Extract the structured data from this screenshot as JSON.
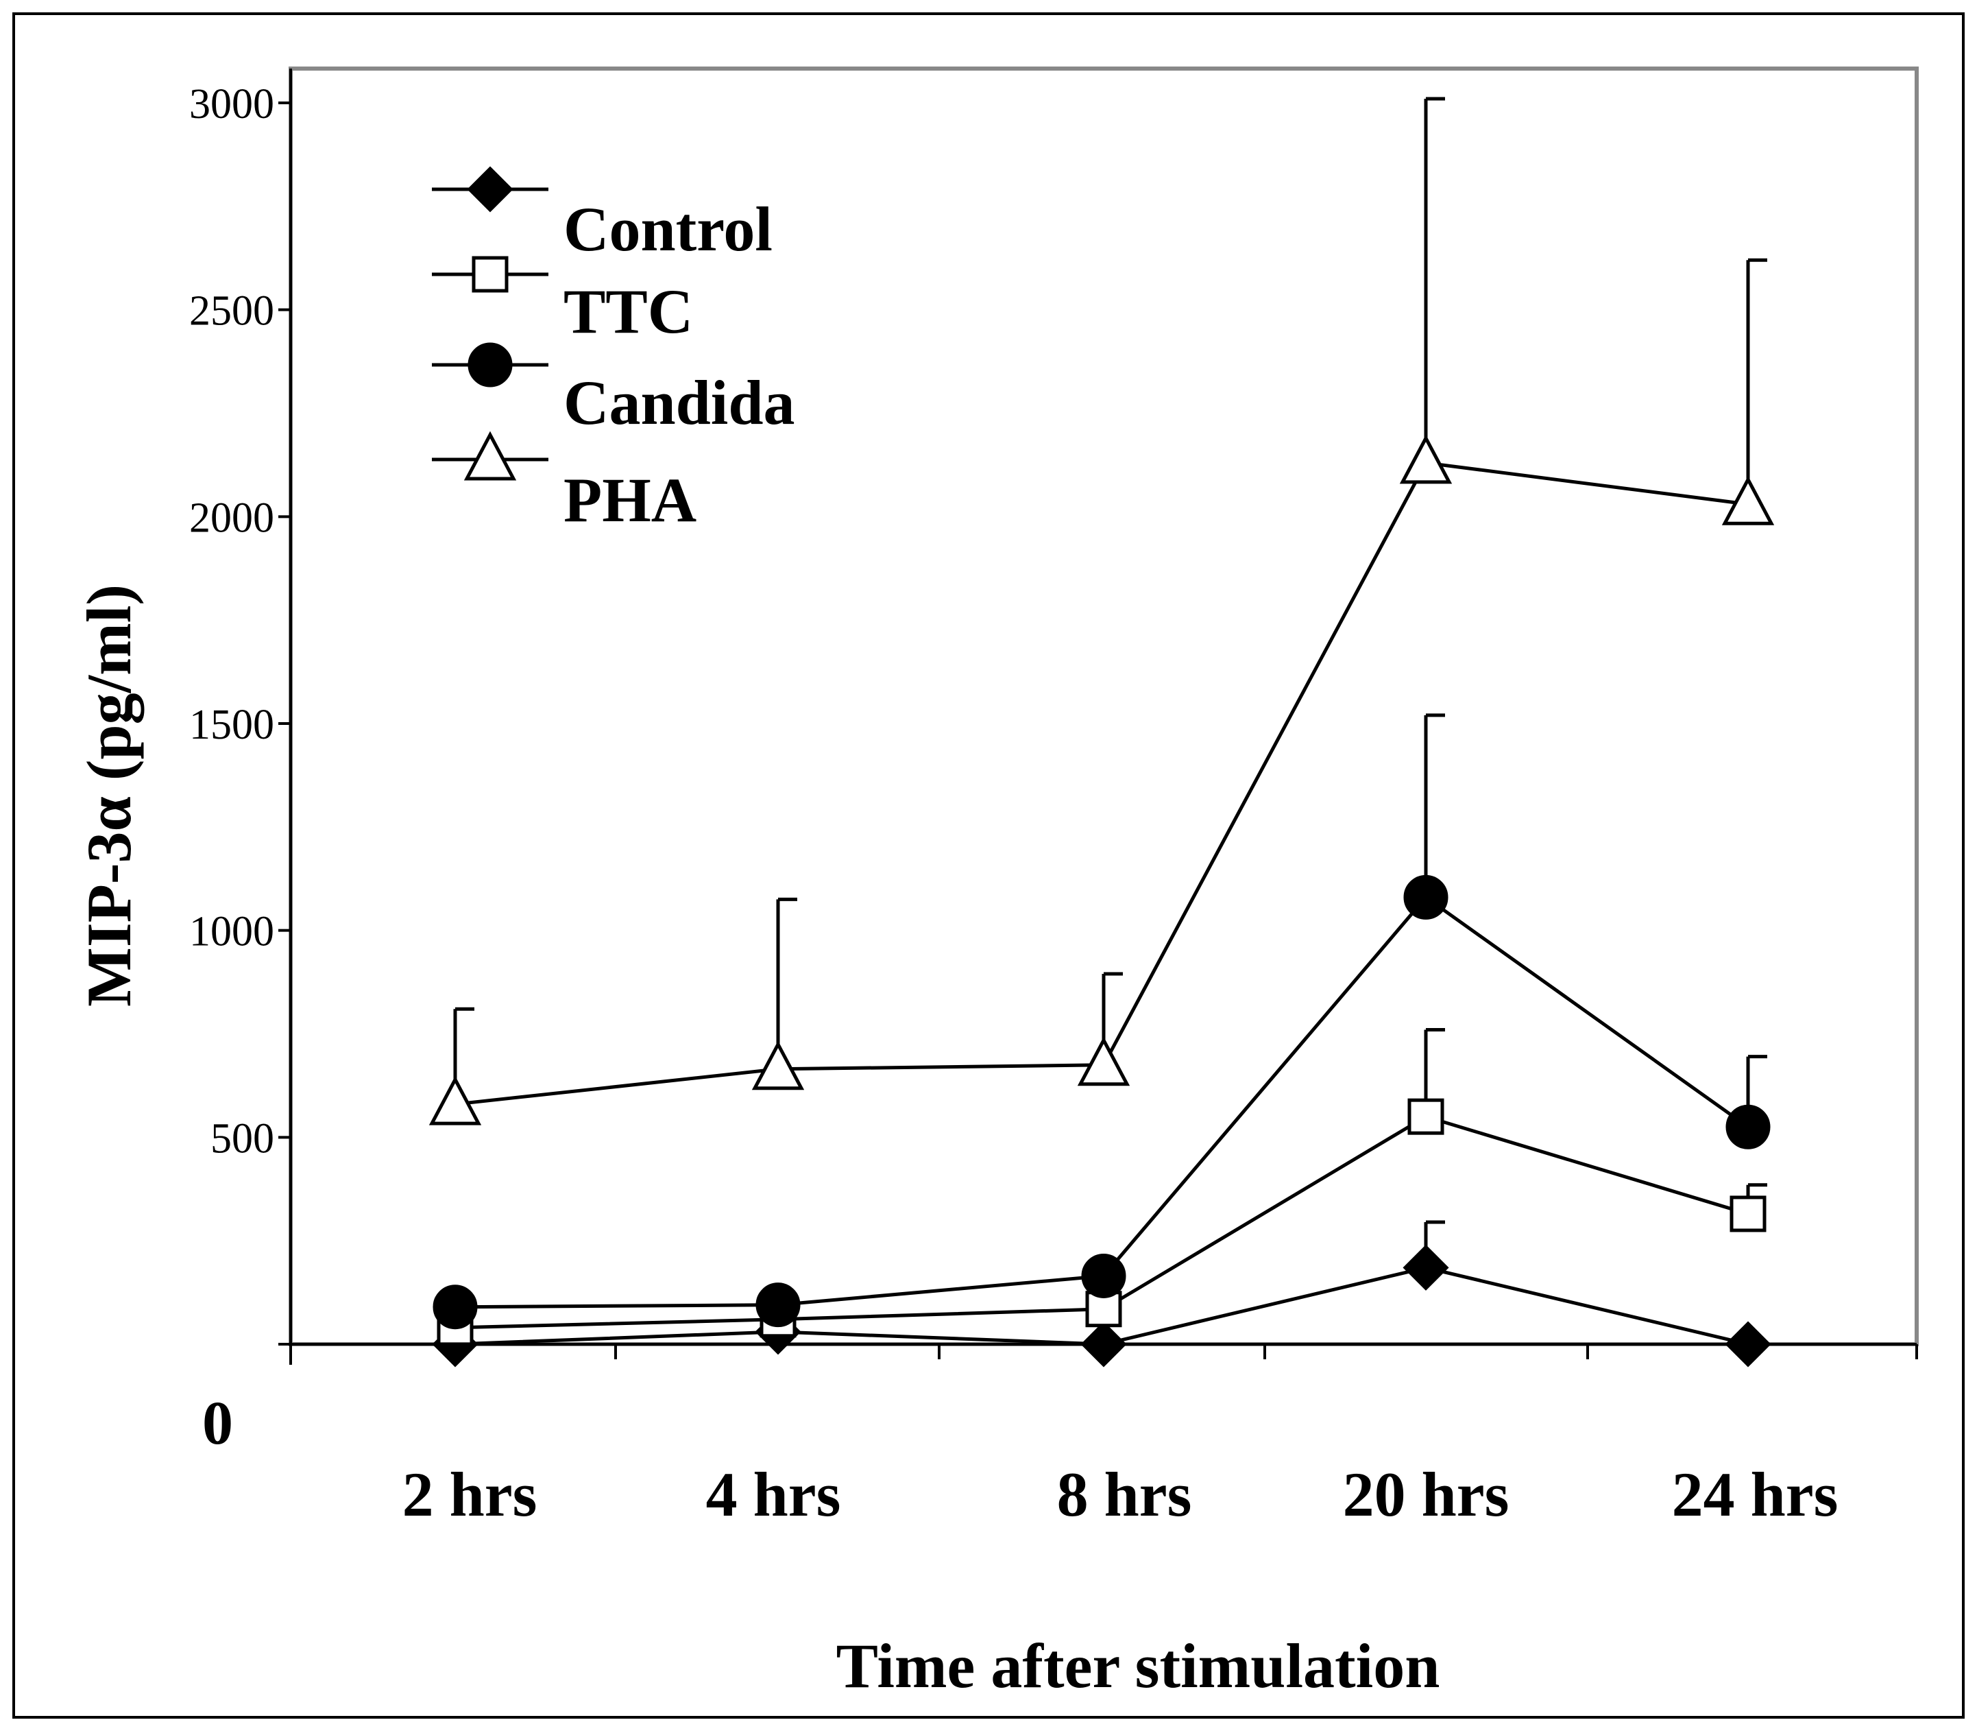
{
  "chart_data": {
    "type": "line",
    "title": "",
    "xlabel": "Time after stimulation",
    "ylabel": "MIP-3α (pg/ml)",
    "categories": [
      "2 hrs",
      "4 hrs",
      "8 hrs",
      "20 hrs",
      "24 hrs"
    ],
    "ylim": [
      0,
      3000
    ],
    "yticks": [
      0,
      500,
      1000,
      1500,
      2000,
      2500,
      3000
    ],
    "ytick_labels": [
      "0",
      "500",
      "1000",
      "1500",
      "2000",
      "2500",
      "3000"
    ],
    "legend_position": "top-left",
    "grid": false,
    "series": [
      {
        "name": "Control",
        "marker": "filled-diamond",
        "values": [
          0,
          30,
          0,
          185,
          0
        ],
        "error": [
          0,
          0,
          0,
          110,
          0
        ]
      },
      {
        "name": "TTC",
        "marker": "open-square",
        "values": [
          40,
          60,
          85,
          550,
          315
        ],
        "error": [
          0,
          0,
          0,
          210,
          70
        ]
      },
      {
        "name": "Candida",
        "marker": "filled-circle",
        "values": [
          90,
          95,
          165,
          1080,
          525
        ],
        "error": [
          0,
          0,
          0,
          440,
          170
        ]
      },
      {
        "name": "PHA",
        "marker": "open-triangle",
        "values": [
          580,
          665,
          675,
          2130,
          2030
        ],
        "error": [
          230,
          410,
          220,
          880,
          590
        ]
      }
    ]
  }
}
